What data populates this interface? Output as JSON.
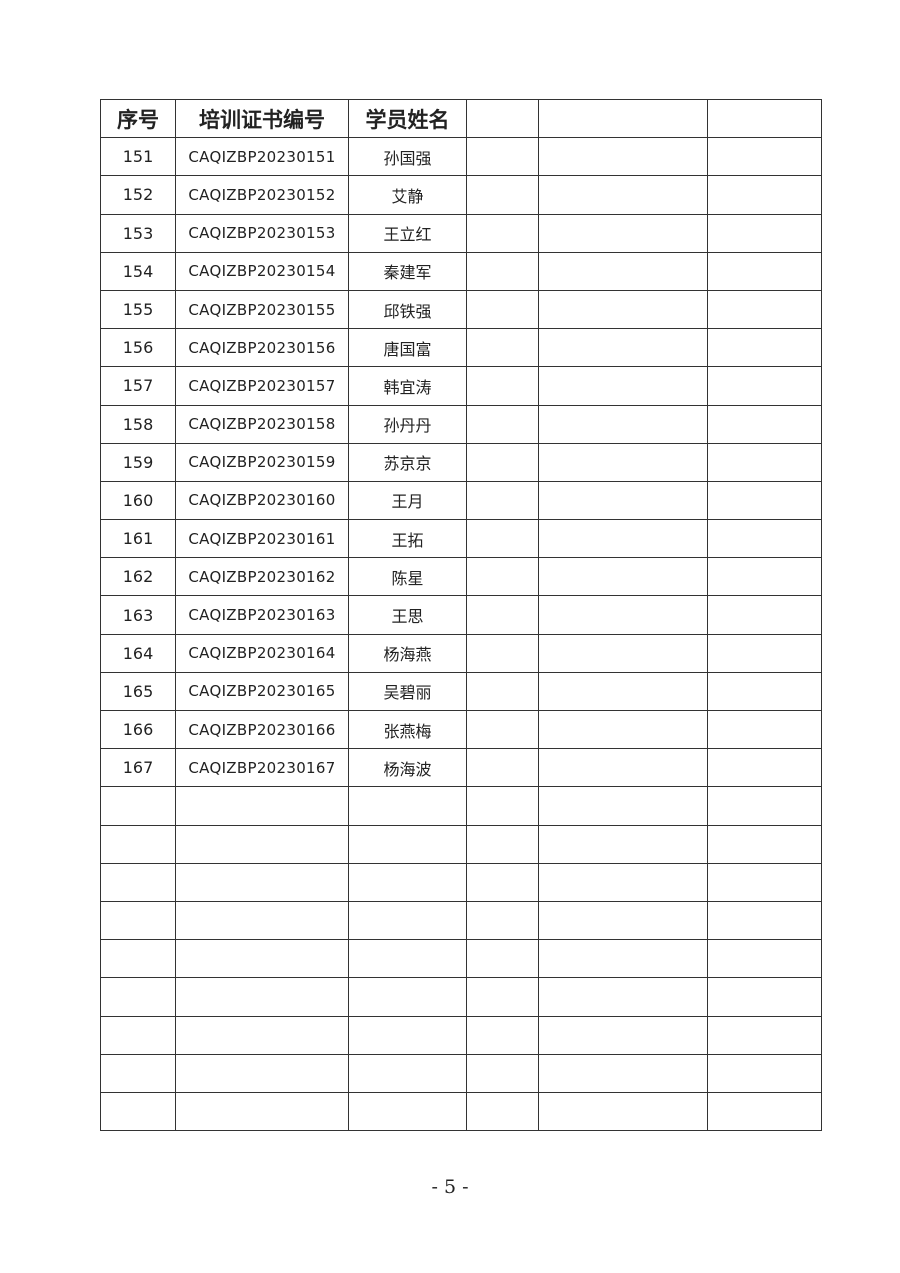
{
  "table": {
    "headers": [
      "序号",
      "培训证书编号",
      "学员姓名",
      "",
      "",
      ""
    ],
    "rows": [
      [
        "151",
        "CAQIZBP20230151",
        "孙国强"
      ],
      [
        "152",
        "CAQIZBP20230152",
        "艾静"
      ],
      [
        "153",
        "CAQIZBP20230153",
        "王立红"
      ],
      [
        "154",
        "CAQIZBP20230154",
        "秦建军"
      ],
      [
        "155",
        "CAQIZBP20230155",
        "邱铁强"
      ],
      [
        "156",
        "CAQIZBP20230156",
        "唐国富"
      ],
      [
        "157",
        "CAQIZBP20230157",
        "韩宜涛"
      ],
      [
        "158",
        "CAQIZBP20230158",
        "孙丹丹"
      ],
      [
        "159",
        "CAQIZBP20230159",
        "苏京京"
      ],
      [
        "160",
        "CAQIZBP20230160",
        "王月"
      ],
      [
        "161",
        "CAQIZBP20230161",
        "王拓"
      ],
      [
        "162",
        "CAQIZBP20230162",
        "陈星"
      ],
      [
        "163",
        "CAQIZBP20230163",
        "王思"
      ],
      [
        "164",
        "CAQIZBP20230164",
        "杨海燕"
      ],
      [
        "165",
        "CAQIZBP20230165",
        "吴碧丽"
      ],
      [
        "166",
        "CAQIZBP20230166",
        "张燕梅"
      ],
      [
        "167",
        "CAQIZBP20230167",
        "杨海波"
      ]
    ],
    "empty_rows": 9
  },
  "page_number": "- 5 -"
}
